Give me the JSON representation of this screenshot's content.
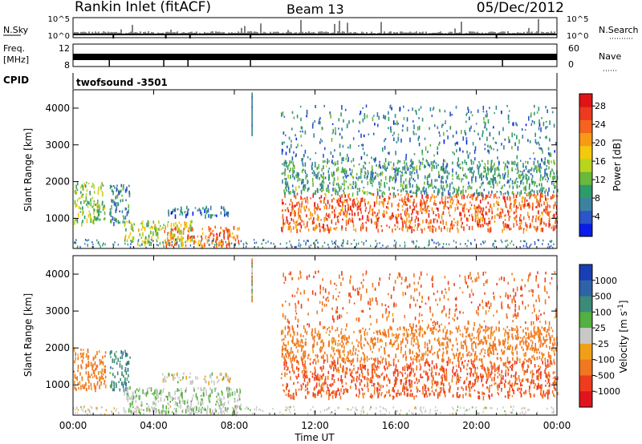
{
  "header": {
    "station": "Rankin Inlet (fitACF)",
    "beam": "Beam 13",
    "date": "05/Dec/2012"
  },
  "top_panels": {
    "nsky_label": "N.Sky",
    "nsky_ticks": [
      "10^5",
      "10^0"
    ],
    "nsearch_label": "N.Search",
    "nsearch_ticks": [
      "10^5",
      "10^0"
    ],
    "freq_label_line1": "Freq.",
    "freq_label_line2": "[MHz]",
    "freq_ticks": [
      "12",
      "8"
    ],
    "nave_label": "Nave",
    "nave_ticks": [
      "60",
      "0"
    ],
    "cpid_label": "CPID",
    "cpid_value": "twofsound -3501"
  },
  "chart_data": [
    {
      "type": "heatmap",
      "name": "power",
      "ylabel": "Slant Range [km]",
      "ylim": [
        180,
        4500
      ],
      "yticks": [
        1000,
        2000,
        3000,
        4000
      ],
      "xlim_hours": [
        0,
        24
      ],
      "colorbar": {
        "label": "Power [dB]",
        "ticks": [
          "4",
          "8",
          "12",
          "16",
          "20",
          "24",
          "28"
        ],
        "colors": [
          "#0a1ce6",
          "#2c55c8",
          "#3c82a0",
          "#2f9a6a",
          "#6ab83c",
          "#b8d41e",
          "#f4c80c",
          "#f79a18",
          "#f5641e",
          "#ec3a1e",
          "#e01414"
        ]
      },
      "regions": [
        {
          "t": [
            0.0,
            1.6
          ],
          "r": [
            900,
            2000
          ],
          "power": 14
        },
        {
          "t": [
            1.8,
            2.8
          ],
          "r": [
            900,
            1950
          ],
          "power": 9
        },
        {
          "t": [
            2.5,
            6.0
          ],
          "r": [
            350,
            950
          ],
          "power": 16
        },
        {
          "t": [
            4.5,
            8.2
          ],
          "r": [
            280,
            800
          ],
          "power": 24
        },
        {
          "t": [
            4.4,
            7.8
          ],
          "r": [
            1100,
            1350
          ],
          "power": 7
        },
        {
          "t": [
            10.3,
            24.0
          ],
          "r": [
            700,
            1700
          ],
          "power": 25
        },
        {
          "t": [
            10.3,
            24.0
          ],
          "r": [
            1700,
            2600
          ],
          "power": 10
        },
        {
          "t": [
            10.3,
            24.0
          ],
          "r": [
            2600,
            4100
          ],
          "power": 8
        }
      ]
    },
    {
      "type": "heatmap",
      "name": "velocity",
      "ylabel": "Slant Range [km]",
      "ylim": [
        180,
        4500
      ],
      "yticks": [
        1000,
        2000,
        3000,
        4000
      ],
      "xlabel": "Time UT",
      "xticks": [
        "00:00",
        "04:00",
        "08:00",
        "12:00",
        "16:00",
        "20:00",
        "00:00"
      ],
      "xlim_hours": [
        0,
        24
      ],
      "colorbar": {
        "label": "Velocity [m s^-1]",
        "ticks": [
          "1000",
          "500",
          "100",
          "25",
          "-25",
          "-100",
          "-500",
          "-1000"
        ],
        "colors": [
          "#1a3fb4",
          "#2f63a8",
          "#3c8a78",
          "#54b040",
          "#c8c8c8",
          "#f0a018",
          "#f07820",
          "#ef3c1e",
          "#e0141e"
        ]
      },
      "regions": [
        {
          "t": [
            0.0,
            1.6
          ],
          "r": [
            900,
            2000
          ],
          "velocity": -150
        },
        {
          "t": [
            1.8,
            2.8
          ],
          "r": [
            900,
            1950
          ],
          "velocity": 200
        },
        {
          "t": [
            2.5,
            8.3
          ],
          "r": [
            250,
            950
          ],
          "velocity": 20
        },
        {
          "t": [
            4.4,
            7.8
          ],
          "r": [
            1100,
            1350
          ],
          "velocity": -10
        },
        {
          "t": [
            10.3,
            24.0
          ],
          "r": [
            700,
            1700
          ],
          "velocity": -300
        },
        {
          "t": [
            10.3,
            24.0
          ],
          "r": [
            1700,
            2600
          ],
          "velocity": -150
        },
        {
          "t": [
            10.3,
            24.0
          ],
          "r": [
            2600,
            4100
          ],
          "velocity": -250
        }
      ]
    }
  ]
}
